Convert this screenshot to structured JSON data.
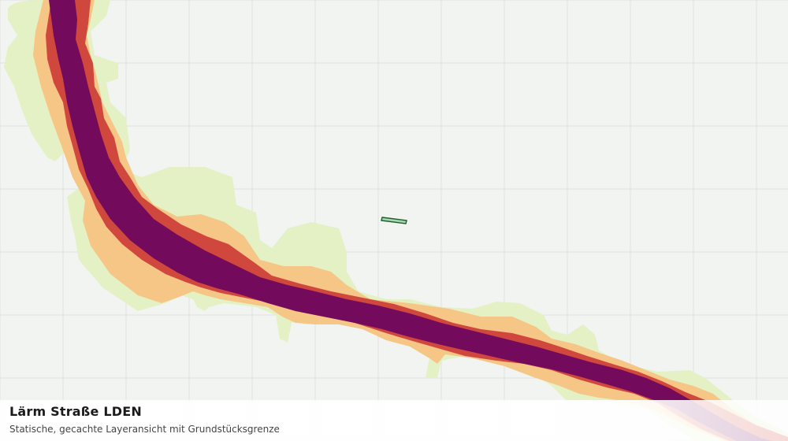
{
  "map": {
    "layer_title": "Lärm Straße LDEN",
    "layer_subtitle": "Statische, gecachte Layeransicht mit Grundstücksgrenze",
    "colors": {
      "background": "#f2f4f2",
      "grid": "#dfe2df",
      "band_outer": "#e3f1c4",
      "band_mid": "#f5c686",
      "band_inner": "#d0473e",
      "band_core": "#730a5b",
      "parcel_fill": "#a6d8b0",
      "parcel_stroke": "#1f5b2c"
    }
  }
}
